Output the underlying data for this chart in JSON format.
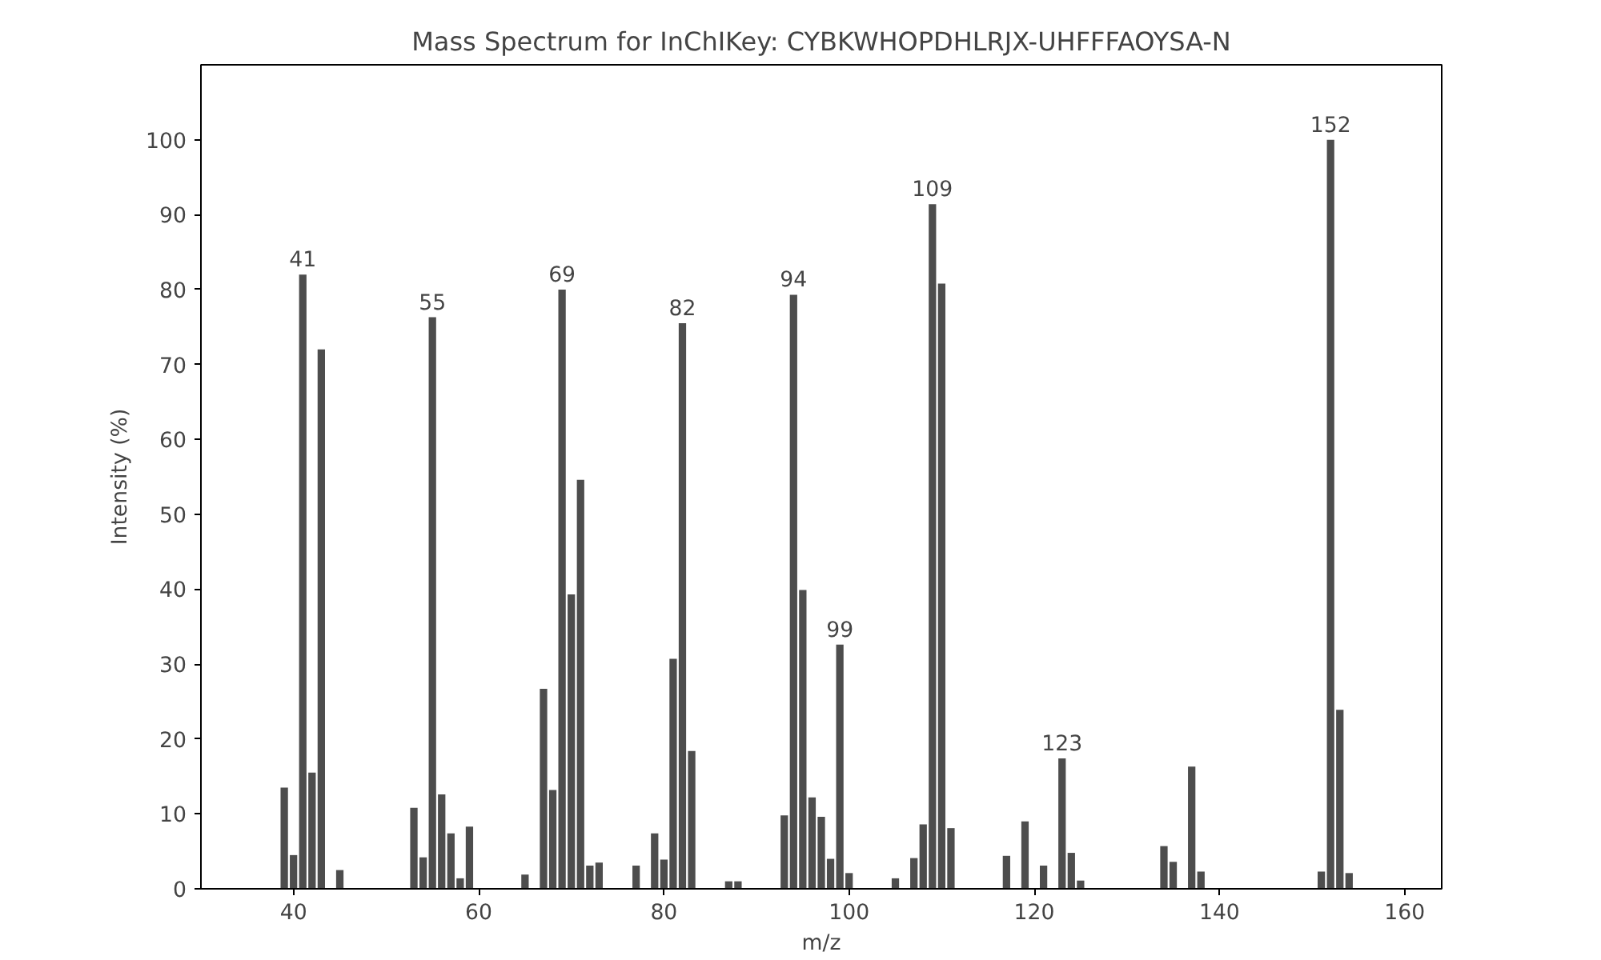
{
  "chart_data": {
    "type": "bar",
    "title": "Mass Spectrum for InChIKey: CYBKWHOPDHLRJX-UHFFFAOYSA-N",
    "xlabel": "m/z",
    "ylabel": "Intensity (%)",
    "x": [
      39,
      40,
      41,
      42,
      43,
      45,
      53,
      54,
      55,
      56,
      57,
      58,
      59,
      65,
      67,
      68,
      69,
      70,
      71,
      72,
      73,
      77,
      79,
      80,
      81,
      82,
      83,
      87,
      88,
      93,
      94,
      95,
      96,
      97,
      98,
      99,
      100,
      105,
      107,
      108,
      109,
      110,
      111,
      117,
      119,
      121,
      123,
      124,
      125,
      134,
      135,
      137,
      138,
      151,
      152,
      153,
      154
    ],
    "values": [
      13.5,
      4.5,
      82,
      15.5,
      72,
      2.5,
      10.8,
      4.2,
      76.3,
      12.6,
      7.4,
      1.4,
      8.3,
      1.9,
      26.7,
      13.2,
      80,
      39.3,
      54.6,
      3.1,
      3.5,
      3.1,
      7.4,
      3.9,
      30.7,
      75.5,
      18.4,
      1,
      1,
      9.8,
      79.3,
      39.9,
      12.2,
      9.6,
      4,
      32.6,
      2.1,
      1.4,
      4.1,
      8.6,
      91.4,
      80.8,
      8.1,
      4.4,
      9,
      3.1,
      17.4,
      4.8,
      1.1,
      5.7,
      3.6,
      16.3,
      2.3,
      2.3,
      100,
      23.9,
      2.1
    ],
    "color": "#4d4d4d",
    "xlim": [
      30,
      164
    ],
    "xticks": [
      40,
      60,
      80,
      100,
      120,
      140,
      160
    ],
    "ylim": [
      0,
      110
    ],
    "yticks": [
      0,
      10,
      20,
      30,
      40,
      50,
      60,
      70,
      80,
      90,
      100
    ],
    "grid": false,
    "annotations": [
      {
        "text": "41",
        "x": 41,
        "y": 82
      },
      {
        "text": "55",
        "x": 55,
        "y": 76.3
      },
      {
        "text": "69",
        "x": 69,
        "y": 80
      },
      {
        "text": "82",
        "x": 82,
        "y": 75.5
      },
      {
        "text": "94",
        "x": 94,
        "y": 79.3
      },
      {
        "text": "99",
        "x": 99,
        "y": 32.6
      },
      {
        "text": "109",
        "x": 109,
        "y": 91.4
      },
      {
        "text": "123",
        "x": 123,
        "y": 17.4
      },
      {
        "text": "152",
        "x": 152,
        "y": 100
      }
    ]
  }
}
